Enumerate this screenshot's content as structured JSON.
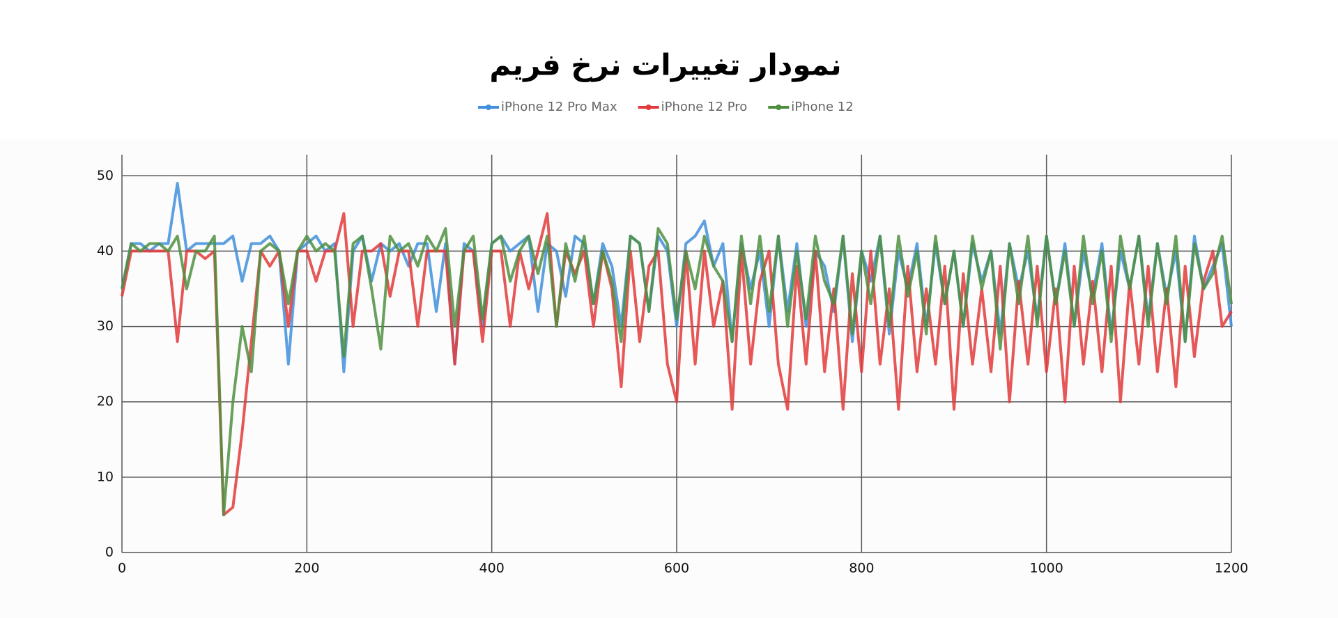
{
  "chart_data": {
    "type": "line",
    "title": "نمودار تغییرات نرخ فریم",
    "x": [
      0,
      10,
      20,
      30,
      40,
      50,
      60,
      70,
      80,
      90,
      100,
      110,
      120,
      130,
      140,
      150,
      160,
      170,
      180,
      190,
      200,
      210,
      220,
      230,
      240,
      250,
      260,
      270,
      280,
      290,
      300,
      310,
      320,
      330,
      340,
      350,
      360,
      370,
      380,
      390,
      400,
      410,
      420,
      430,
      440,
      450,
      460,
      470,
      480,
      490,
      500,
      510,
      520,
      530,
      540,
      550,
      560,
      570,
      580,
      590,
      600,
      610,
      620,
      630,
      640,
      650,
      660,
      670,
      680,
      690,
      700,
      710,
      720,
      730,
      740,
      750,
      760,
      770,
      780,
      790,
      800,
      810,
      820,
      830,
      840,
      850,
      860,
      870,
      880,
      890,
      900,
      910,
      920,
      930,
      940,
      950,
      960,
      970,
      980,
      990,
      1000,
      1010,
      1020,
      1030,
      1040,
      1050,
      1060,
      1070,
      1080,
      1090,
      1100,
      1110,
      1120,
      1130,
      1140,
      1150,
      1160,
      1170,
      1180,
      1190,
      1200
    ],
    "series": [
      {
        "name": "iPhone 12 Pro Max",
        "color": "#3f8fdc",
        "values": [
          35,
          41,
          41,
          40,
          41,
          41,
          49,
          40,
          41,
          41,
          41,
          41,
          42,
          36,
          41,
          41,
          42,
          40,
          25,
          40,
          41,
          42,
          40,
          41,
          24,
          40,
          42,
          36,
          41,
          40,
          41,
          38,
          41,
          41,
          32,
          41,
          25,
          41,
          40,
          30,
          41,
          42,
          40,
          41,
          42,
          32,
          41,
          40,
          34,
          42,
          41,
          33,
          41,
          38,
          30,
          42,
          41,
          32,
          42,
          40,
          30,
          41,
          42,
          44,
          38,
          41,
          28,
          41,
          35,
          40,
          30,
          42,
          32,
          41,
          30,
          40,
          38,
          32,
          42,
          28,
          40,
          36,
          42,
          29,
          40,
          35,
          41,
          30,
          41,
          33,
          40,
          30,
          41,
          36,
          40,
          29,
          41,
          35,
          40,
          31,
          42,
          33,
          41,
          30,
          40,
          34,
          41,
          29,
          40,
          35,
          42,
          31,
          41,
          34,
          40,
          28,
          42,
          35,
          38,
          41,
          30
        ]
      },
      {
        "name": "iPhone 12 Pro",
        "color": "#e23a3a",
        "values": [
          34,
          40,
          40,
          40,
          40,
          40,
          28,
          40,
          40,
          39,
          40,
          5,
          6,
          16,
          28,
          40,
          38,
          40,
          30,
          40,
          40,
          36,
          40,
          40,
          45,
          30,
          40,
          40,
          41,
          34,
          40,
          40,
          30,
          40,
          40,
          40,
          25,
          40,
          40,
          28,
          40,
          40,
          30,
          40,
          35,
          40,
          45,
          30,
          40,
          37,
          40,
          30,
          40,
          35,
          22,
          40,
          28,
          38,
          40,
          25,
          20,
          40,
          25,
          40,
          30,
          36,
          19,
          40,
          25,
          36,
          40,
          25,
          19,
          38,
          25,
          40,
          24,
          35,
          19,
          37,
          24,
          40,
          25,
          35,
          19,
          38,
          24,
          35,
          25,
          38,
          19,
          37,
          25,
          35,
          24,
          38,
          20,
          36,
          25,
          38,
          24,
          35,
          20,
          38,
          25,
          36,
          24,
          38,
          20,
          36,
          25,
          38,
          24,
          35,
          22,
          38,
          26,
          36,
          40,
          30,
          32
        ]
      },
      {
        "name": "iPhone 12",
        "color": "#4e8f3f",
        "values": [
          35,
          41,
          40,
          41,
          41,
          40,
          42,
          35,
          40,
          40,
          42,
          5,
          20,
          30,
          24,
          40,
          41,
          40,
          33,
          40,
          42,
          40,
          41,
          40,
          26,
          41,
          42,
          35,
          27,
          42,
          40,
          41,
          38,
          42,
          40,
          43,
          30,
          40,
          42,
          31,
          41,
          42,
          36,
          40,
          42,
          37,
          42,
          30,
          41,
          36,
          42,
          33,
          40,
          36,
          28,
          42,
          41,
          32,
          43,
          41,
          31,
          40,
          35,
          42,
          38,
          36,
          28,
          42,
          33,
          42,
          32,
          42,
          30,
          40,
          31,
          42,
          36,
          33,
          42,
          29,
          40,
          33,
          42,
          30,
          42,
          34,
          40,
          29,
          42,
          33,
          40,
          30,
          42,
          35,
          40,
          27,
          41,
          33,
          42,
          30,
          42,
          33,
          40,
          30,
          42,
          33,
          40,
          28,
          42,
          35,
          42,
          30,
          41,
          33,
          42,
          28,
          41,
          35,
          37,
          42,
          33
        ]
      }
    ],
    "xlim": [
      0,
      1200
    ],
    "xticks": [
      0,
      200,
      400,
      600,
      800,
      1000,
      1200
    ],
    "ylim": [
      0,
      52.8
    ],
    "yticks": [
      0,
      10,
      20,
      30,
      40,
      50
    ],
    "grid": true
  }
}
